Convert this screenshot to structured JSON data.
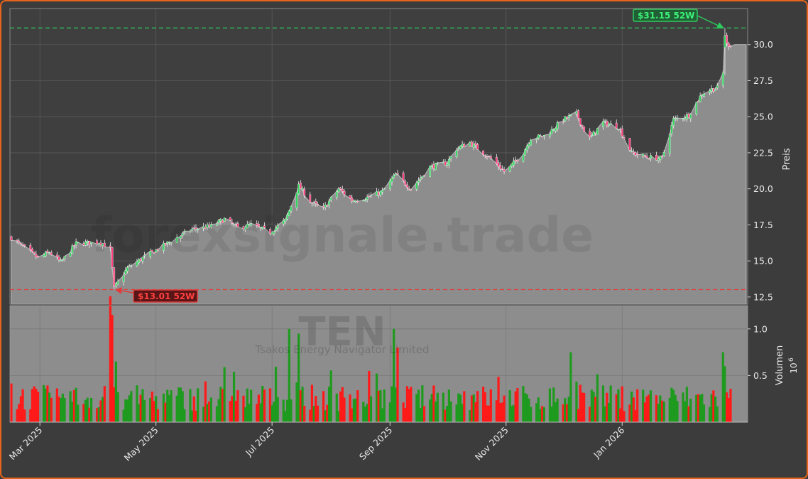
{
  "chart_data": {
    "type": "candlestick",
    "ticker": "TEN",
    "company": "Tsakos Energy Navigator Limited",
    "watermark": "forexsignale.trade",
    "price_axis": {
      "label": "Preis",
      "ylim": [
        12,
        32.5
      ],
      "ticks": [
        12.5,
        15.0,
        17.5,
        20.0,
        22.5,
        25.0,
        27.5,
        30.0
      ],
      "tick_labels": [
        "12.5",
        "15.0",
        "17.5",
        "20.0",
        "22.5",
        "25.0",
        "27.5",
        "30.0"
      ]
    },
    "volume_axis": {
      "label": "Volumen",
      "multiplier": "10",
      "multiplier_exp": "6",
      "ylim": [
        0,
        1.25
      ],
      "ticks": [
        0.5,
        1.0
      ],
      "tick_labels": [
        "0.5",
        "1.0"
      ]
    },
    "x_axis": {
      "start": "2025-02-14",
      "end": "2026-02-27",
      "ticks": [
        "2025-03-01",
        "2025-05-01",
        "2025-07-01",
        "2025-09-01",
        "2025-11-01",
        "2026-01-01"
      ],
      "tick_labels": [
        "Mar 2025",
        "May 2025",
        "Jul 2025",
        "Sep 2025",
        "Nov 2025",
        "Jan 2026"
      ]
    },
    "high_52w": {
      "label": "$31.15 52W",
      "value": 31.15,
      "date": "2026-02-24"
    },
    "low_52w": {
      "label": "$13.01 52W",
      "value": 13.01,
      "date": "2025-04-09"
    },
    "current_price_area_level": 30.0,
    "close_anchors": [
      [
        "2025-02-14",
        16.6
      ],
      [
        "2025-02-28",
        15.2
      ],
      [
        "2025-03-06",
        15.6
      ],
      [
        "2025-03-12",
        14.9
      ],
      [
        "2025-03-20",
        16.2
      ],
      [
        "2025-04-02",
        16.3
      ],
      [
        "2025-04-07",
        15.8
      ],
      [
        "2025-04-09",
        13.1
      ],
      [
        "2025-04-16",
        14.5
      ],
      [
        "2025-04-24",
        15.2
      ],
      [
        "2025-05-08",
        16.3
      ],
      [
        "2025-05-20",
        17.2
      ],
      [
        "2025-05-30",
        17.4
      ],
      [
        "2025-06-06",
        17.9
      ],
      [
        "2025-06-13",
        17.3
      ],
      [
        "2025-06-20",
        17.5
      ],
      [
        "2025-06-30",
        17.0
      ],
      [
        "2025-07-08",
        17.8
      ],
      [
        "2025-07-15",
        20.2
      ],
      [
        "2025-07-22",
        19.0
      ],
      [
        "2025-07-28",
        18.6
      ],
      [
        "2025-08-05",
        20.0
      ],
      [
        "2025-08-12",
        19.2
      ],
      [
        "2025-08-20",
        19.4
      ],
      [
        "2025-08-28",
        19.8
      ],
      [
        "2025-09-04",
        21.0
      ],
      [
        "2025-09-12",
        20.0
      ],
      [
        "2025-09-22",
        21.5
      ],
      [
        "2025-10-01",
        21.8
      ],
      [
        "2025-10-06",
        22.8
      ],
      [
        "2025-10-13",
        23.2
      ],
      [
        "2025-10-24",
        22.1
      ],
      [
        "2025-10-31",
        21.2
      ],
      [
        "2025-11-03",
        21.5
      ],
      [
        "2025-11-10",
        22.5
      ],
      [
        "2025-11-14",
        23.5
      ],
      [
        "2025-11-22",
        23.7
      ],
      [
        "2025-12-01",
        24.8
      ],
      [
        "2025-12-08",
        25.2
      ],
      [
        "2025-12-11",
        24.3
      ],
      [
        "2025-12-15",
        23.5
      ],
      [
        "2025-12-22",
        24.6
      ],
      [
        "2025-12-30",
        24.3
      ],
      [
        "2026-01-06",
        22.5
      ],
      [
        "2026-01-14",
        22.2
      ],
      [
        "2026-01-22",
        22.1
      ],
      [
        "2026-01-28",
        24.8
      ],
      [
        "2026-02-05",
        25.1
      ],
      [
        "2026-02-12",
        26.6
      ],
      [
        "2026-02-17",
        26.9
      ],
      [
        "2026-02-20",
        27.0
      ],
      [
        "2026-02-23",
        28.0
      ],
      [
        "2026-02-25",
        30.0
      ],
      [
        "2026-02-27",
        30.0
      ]
    ],
    "volume_spikes": [
      [
        "2025-04-07",
        1.35
      ],
      [
        "2025-04-08",
        1.15
      ],
      [
        "2025-04-10",
        0.65
      ],
      [
        "2025-07-10",
        1.0
      ],
      [
        "2025-07-15",
        0.95
      ],
      [
        "2025-09-03",
        1.0
      ],
      [
        "2025-09-05",
        0.8
      ],
      [
        "2025-12-05",
        0.75
      ],
      [
        "2026-02-23",
        0.75
      ],
      [
        "2026-02-24",
        0.6
      ]
    ]
  }
}
